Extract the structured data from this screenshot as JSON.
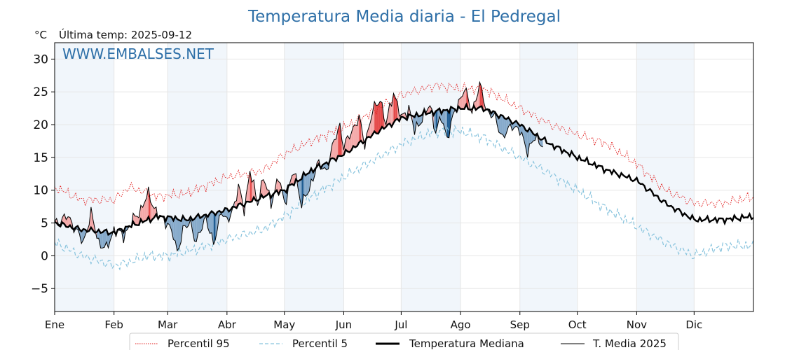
{
  "header": {
    "title": "Temperatura Media diaria - El Pedregal",
    "unit": "°C",
    "last_temp": "Última temp: 2025-09-12",
    "watermark": "WWW.EMBALSES.NET"
  },
  "colors": {
    "title": "#2e6fa7",
    "watermark": "#2e6fa7",
    "p95": "#e11b1b",
    "p5": "#87c3dd",
    "median": "#000000",
    "current": "#000000",
    "warm_fill": "#f4a9a9",
    "warm_fill_strong": "#e54a4a",
    "cold_fill": "#86aacb",
    "cold_fill_strong": "#1f5c92",
    "month_band": "#e8f0f9"
  },
  "legend": {
    "items": [
      {
        "label": "Percentil 95",
        "style": "dotted-red"
      },
      {
        "label": "Percentil 5",
        "style": "dashed-lightblue"
      },
      {
        "label": "Temperatura Mediana",
        "style": "thick-black"
      },
      {
        "label": "T. Media 2025",
        "style": "thin-black"
      }
    ]
  },
  "chart_data": {
    "type": "line",
    "title": "Temperatura Media diaria - El Pedregal",
    "ylabel": "°C",
    "xlabel": "",
    "ylim": [
      -8.5,
      32.5
    ],
    "yticks": [
      -5,
      0,
      5,
      10,
      15,
      20,
      25,
      30
    ],
    "ytick_labels": [
      "−5",
      "0",
      "5",
      "10",
      "15",
      "20",
      "25",
      "30"
    ],
    "xlim": [
      1,
      366
    ],
    "month_ticks": [
      1,
      32,
      60,
      91,
      121,
      152,
      182,
      213,
      244,
      274,
      305,
      335
    ],
    "month_labels": [
      "Ene",
      "Feb",
      "Mar",
      "Abr",
      "May",
      "Jun",
      "Jul",
      "Ago",
      "Sep",
      "Oct",
      "Nov",
      "Dic"
    ],
    "shaded_months": [
      "Ene",
      "Mar",
      "May",
      "Jul",
      "Sep",
      "Nov"
    ],
    "grid": true,
    "legend_position": "bottom-center",
    "series_keypoints": {
      "p95": [
        [
          1,
          10.5
        ],
        [
          15,
          8.5
        ],
        [
          32,
          8.5
        ],
        [
          40,
          10.5
        ],
        [
          55,
          9
        ],
        [
          70,
          9.5
        ],
        [
          91,
          12
        ],
        [
          110,
          13
        ],
        [
          121,
          15.5
        ],
        [
          135,
          17.5
        ],
        [
          152,
          19.5
        ],
        [
          170,
          22.5
        ],
        [
          182,
          24.5
        ],
        [
          200,
          26
        ],
        [
          213,
          25.5
        ],
        [
          225,
          25.5
        ],
        [
          244,
          22.5
        ],
        [
          260,
          20
        ],
        [
          274,
          18.5
        ],
        [
          290,
          17
        ],
        [
          305,
          14
        ],
        [
          320,
          10
        ],
        [
          335,
          8
        ],
        [
          350,
          8
        ],
        [
          366,
          9
        ]
      ],
      "p5": [
        [
          1,
          2
        ],
        [
          15,
          0
        ],
        [
          32,
          -1.5
        ],
        [
          40,
          -1
        ],
        [
          50,
          0
        ],
        [
          60,
          0
        ],
        [
          75,
          1
        ],
        [
          91,
          2.5
        ],
        [
          110,
          4
        ],
        [
          121,
          6
        ],
        [
          135,
          9
        ],
        [
          152,
          12
        ],
        [
          170,
          15
        ],
        [
          182,
          17
        ],
        [
          200,
          19
        ],
        [
          213,
          19
        ],
        [
          225,
          18
        ],
        [
          244,
          15
        ],
        [
          260,
          12.5
        ],
        [
          274,
          10
        ],
        [
          290,
          7
        ],
        [
          305,
          4.5
        ],
        [
          320,
          2
        ],
        [
          335,
          0
        ],
        [
          350,
          1.5
        ],
        [
          366,
          1.5
        ]
      ],
      "median": [
        [
          1,
          5
        ],
        [
          15,
          4
        ],
        [
          32,
          3.5
        ],
        [
          40,
          4.5
        ],
        [
          55,
          6
        ],
        [
          70,
          5.5
        ],
        [
          91,
          7
        ],
        [
          110,
          9
        ],
        [
          121,
          10
        ],
        [
          135,
          13
        ],
        [
          152,
          15.5
        ],
        [
          170,
          19
        ],
        [
          182,
          21
        ],
        [
          200,
          22
        ],
        [
          213,
          22.5
        ],
        [
          225,
          22.5
        ],
        [
          244,
          20
        ],
        [
          260,
          17
        ],
        [
          274,
          15
        ],
        [
          290,
          13
        ],
        [
          305,
          11.5
        ],
        [
          320,
          8
        ],
        [
          335,
          5.5
        ],
        [
          350,
          5.5
        ],
        [
          366,
          6
        ]
      ],
      "current_2025": [
        [
          1,
          5
        ],
        [
          8,
          6
        ],
        [
          12,
          4
        ],
        [
          16,
          2
        ],
        [
          20,
          6.5
        ],
        [
          24,
          2
        ],
        [
          28,
          1
        ],
        [
          32,
          4
        ],
        [
          37,
          3
        ],
        [
          42,
          5.5
        ],
        [
          46,
          7
        ],
        [
          50,
          9.5
        ],
        [
          55,
          6
        ],
        [
          60,
          5
        ],
        [
          63,
          3
        ],
        [
          65,
          0.5
        ],
        [
          68,
          4
        ],
        [
          72,
          5
        ],
        [
          75,
          2
        ],
        [
          80,
          6
        ],
        [
          84,
          1.5
        ],
        [
          88,
          7
        ],
        [
          91,
          5
        ],
        [
          95,
          8
        ],
        [
          97,
          10.5
        ],
        [
          100,
          7
        ],
        [
          103,
          13
        ],
        [
          107,
          8
        ],
        [
          110,
          12
        ],
        [
          114,
          8
        ],
        [
          118,
          12
        ],
        [
          121,
          8
        ],
        [
          126,
          13
        ],
        [
          130,
          8
        ],
        [
          134,
          10
        ],
        [
          138,
          14
        ],
        [
          143,
          13
        ],
        [
          147,
          17.5
        ],
        [
          150,
          20
        ],
        [
          152,
          16.5
        ],
        [
          156,
          19
        ],
        [
          160,
          21
        ],
        [
          163,
          17
        ],
        [
          167,
          22
        ],
        [
          171,
          24
        ],
        [
          174,
          20
        ],
        [
          178,
          25
        ],
        [
          182,
          21
        ],
        [
          186,
          22.5
        ],
        [
          189,
          19
        ],
        [
          193,
          21
        ],
        [
          197,
          23
        ],
        [
          200,
          19
        ],
        [
          203,
          21
        ],
        [
          206,
          18
        ],
        [
          210,
          22
        ],
        [
          215,
          25.5
        ],
        [
          219,
          22
        ],
        [
          223,
          26
        ],
        [
          227,
          22
        ],
        [
          231,
          21
        ],
        [
          235,
          18
        ],
        [
          240,
          20
        ],
        [
          244,
          19
        ],
        [
          248,
          16
        ],
        [
          252,
          18
        ],
        [
          256,
          17
        ]
      ]
    }
  }
}
